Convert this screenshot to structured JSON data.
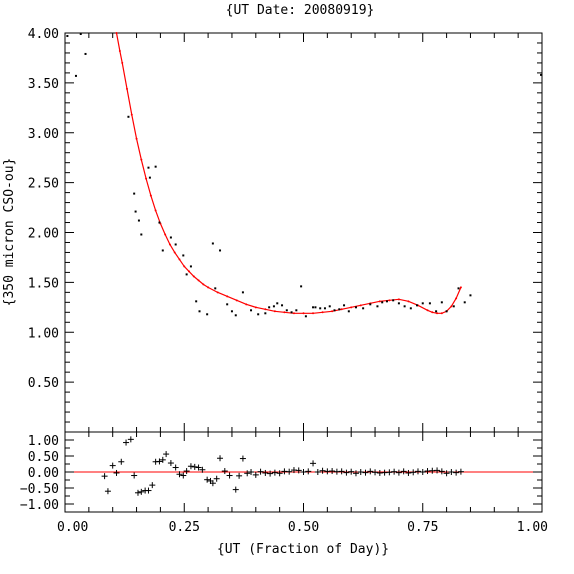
{
  "chart_data": [
    {
      "type": "scatter",
      "title": "{UT Date: 20080919}",
      "xlabel": "",
      "ylabel": "{350 micron CSO-ou}",
      "xlim": [
        0.0,
        1.0
      ],
      "ylim": [
        0.0,
        4.0
      ],
      "xticks": [
        "0.00",
        "0.25",
        "0.50",
        "0.75",
        "1.00"
      ],
      "yticks": [
        "0.50",
        "1.00",
        "1.50",
        "2.00",
        "2.50",
        "3.00",
        "3.50",
        "4.00"
      ],
      "series": [
        {
          "kind": "points",
          "color": "#000000",
          "x": [
            0.005,
            0.023,
            0.033,
            0.043,
            0.133,
            0.145,
            0.148,
            0.155,
            0.16,
            0.175,
            0.178,
            0.19,
            0.198,
            0.205,
            0.222,
            0.232,
            0.248,
            0.255,
            0.264,
            0.275,
            0.282,
            0.298,
            0.31,
            0.315,
            0.325,
            0.34,
            0.35,
            0.358,
            0.373,
            0.39,
            0.405,
            0.42,
            0.428,
            0.438,
            0.445,
            0.455,
            0.465,
            0.475,
            0.485,
            0.495,
            0.505,
            0.52,
            0.525,
            0.535,
            0.545,
            0.555,
            0.565,
            0.575,
            0.585,
            0.595,
            0.61,
            0.625,
            0.64,
            0.655,
            0.665,
            0.675,
            0.688,
            0.7,
            0.712,
            0.725,
            0.738,
            0.75,
            0.765,
            0.778,
            0.79,
            0.8,
            0.815,
            0.825,
            0.838,
            0.85,
            0.998
          ],
          "y": [
            3.97,
            3.57,
            3.99,
            3.79,
            3.16,
            2.39,
            2.21,
            2.12,
            1.98,
            2.65,
            2.55,
            2.66,
            2.1,
            1.82,
            1.95,
            1.88,
            1.77,
            1.58,
            1.66,
            1.31,
            1.21,
            1.18,
            1.89,
            1.44,
            1.82,
            1.28,
            1.21,
            1.17,
            1.4,
            1.22,
            1.18,
            1.19,
            1.25,
            1.26,
            1.29,
            1.27,
            1.22,
            1.2,
            1.22,
            1.46,
            1.16,
            1.25,
            1.25,
            1.24,
            1.24,
            1.26,
            1.22,
            1.23,
            1.27,
            1.21,
            1.25,
            1.24,
            1.28,
            1.26,
            1.3,
            1.31,
            1.32,
            1.29,
            1.26,
            1.24,
            1.27,
            1.29,
            1.29,
            1.21,
            1.3,
            1.21,
            1.26,
            1.44,
            1.3,
            1.37,
            3.58
          ]
        },
        {
          "kind": "fit",
          "color": "#ff0000",
          "x": [
            0.108,
            0.115,
            0.12,
            0.13,
            0.14,
            0.15,
            0.16,
            0.17,
            0.18,
            0.19,
            0.2,
            0.21,
            0.22,
            0.23,
            0.24,
            0.25,
            0.26,
            0.27,
            0.28,
            0.29,
            0.3,
            0.32,
            0.34,
            0.36,
            0.38,
            0.4,
            0.42,
            0.44,
            0.46,
            0.48,
            0.5,
            0.52,
            0.54,
            0.56,
            0.58,
            0.6,
            0.62,
            0.64,
            0.66,
            0.68,
            0.7,
            0.72,
            0.74,
            0.76,
            0.77,
            0.78,
            0.79,
            0.8,
            0.81,
            0.82,
            0.83
          ],
          "y": [
            4.0,
            3.82,
            3.7,
            3.44,
            3.18,
            2.94,
            2.73,
            2.54,
            2.37,
            2.22,
            2.09,
            1.98,
            1.88,
            1.8,
            1.73,
            1.66,
            1.61,
            1.56,
            1.52,
            1.48,
            1.45,
            1.4,
            1.36,
            1.32,
            1.28,
            1.25,
            1.23,
            1.21,
            1.2,
            1.19,
            1.19,
            1.19,
            1.2,
            1.21,
            1.23,
            1.25,
            1.27,
            1.29,
            1.31,
            1.32,
            1.33,
            1.31,
            1.27,
            1.22,
            1.2,
            1.19,
            1.19,
            1.21,
            1.26,
            1.34,
            1.45
          ]
        }
      ]
    },
    {
      "type": "scatter",
      "xlabel": "{UT (Fraction of Day)}",
      "ylabel": "",
      "xlim": [
        0.0,
        1.0
      ],
      "ylim": [
        -1.25,
        1.25
      ],
      "xticks": [
        "0.00",
        "0.25",
        "0.50",
        "0.75",
        "1.00"
      ],
      "yticks": [
        "1.00",
        "0.50",
        "0.00",
        "−0.50",
        "−1.00"
      ],
      "series": [
        {
          "kind": "residuals",
          "color": "#000000",
          "x": [
            0.083,
            0.09,
            0.1,
            0.108,
            0.118,
            0.128,
            0.138,
            0.145,
            0.153,
            0.16,
            0.168,
            0.175,
            0.183,
            0.19,
            0.198,
            0.205,
            0.212,
            0.222,
            0.232,
            0.24,
            0.248,
            0.255,
            0.264,
            0.272,
            0.28,
            0.288,
            0.298,
            0.305,
            0.31,
            0.318,
            0.325,
            0.335,
            0.345,
            0.358,
            0.365,
            0.373,
            0.382,
            0.39,
            0.4,
            0.41,
            0.42,
            0.43,
            0.44,
            0.45,
            0.46,
            0.47,
            0.48,
            0.49,
            0.5,
            0.51,
            0.52,
            0.53,
            0.54,
            0.55,
            0.56,
            0.57,
            0.58,
            0.59,
            0.6,
            0.61,
            0.62,
            0.63,
            0.64,
            0.65,
            0.66,
            0.67,
            0.68,
            0.69,
            0.7,
            0.71,
            0.72,
            0.73,
            0.74,
            0.75,
            0.76,
            0.77,
            0.78,
            0.79,
            0.8,
            0.81,
            0.82,
            0.83
          ],
          "y": [
            -0.13,
            -0.6,
            0.2,
            -0.03,
            0.32,
            0.92,
            1.02,
            -0.11,
            -0.65,
            -0.62,
            -0.58,
            -0.58,
            -0.41,
            0.32,
            0.33,
            0.38,
            0.56,
            0.28,
            0.14,
            -0.07,
            -0.11,
            0.03,
            0.18,
            0.16,
            0.14,
            0.07,
            -0.24,
            -0.28,
            -0.35,
            -0.21,
            0.43,
            0.03,
            -0.11,
            -0.55,
            -0.12,
            0.42,
            -0.04,
            0.0,
            -0.09,
            0.01,
            -0.03,
            -0.05,
            -0.02,
            -0.04,
            0.02,
            0.01,
            0.06,
            0.05,
            0.0,
            0.02,
            0.27,
            0.0,
            0.04,
            0.02,
            0.03,
            0.01,
            0.02,
            -0.02,
            0.01,
            -0.04,
            0.0,
            -0.02,
            0.02,
            -0.01,
            -0.03,
            -0.02,
            -0.01,
            0.01,
            -0.02,
            0.02,
            -0.03,
            -0.01,
            0.02,
            0.0,
            0.03,
            0.04,
            0.05,
            0.02,
            -0.04,
            0.0,
            -0.02,
            0.01
          ]
        },
        {
          "kind": "zero-line",
          "color": "#ff0000",
          "y": 0.0
        }
      ]
    }
  ]
}
